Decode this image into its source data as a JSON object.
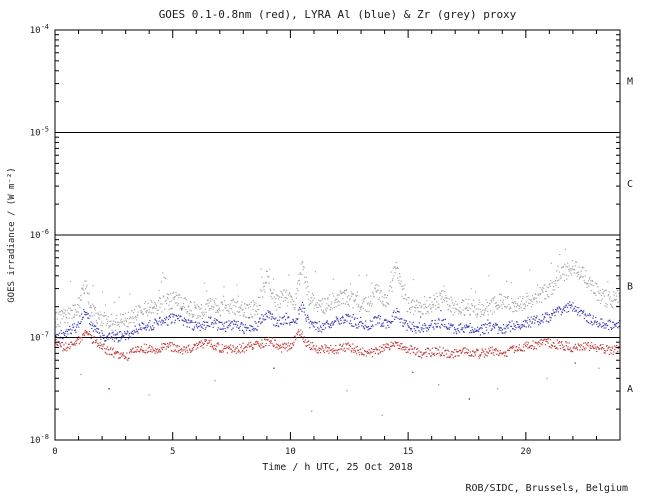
{
  "header": {
    "title": "GOES 0.1-0.8nm (red), LYRA Al (blue) & Zr (grey) proxy"
  },
  "footer": {
    "credit": "ROB/SIDC, Brussels, Belgium"
  },
  "chart_data": {
    "type": "scatter",
    "title": "GOES 0.1-0.8nm (red), LYRA Al (blue) & Zr (grey) proxy",
    "xlabel": "Time / h UTC, 25 Oct 2018",
    "ylabel": "GOES irradiance / (W m⁻²)",
    "footer": "ROB/SIDC, Brussels, Belgium",
    "xlim": [
      0,
      24
    ],
    "ylog_range": [
      -8,
      -4
    ],
    "x_major_ticks": [
      0,
      5,
      10,
      15,
      20
    ],
    "x_minor_step": 1,
    "y_decades": [
      -8,
      -7,
      -6,
      -5,
      -4
    ],
    "hlines_log": [
      -7,
      -6,
      -5
    ],
    "flare_classes": [
      {
        "label": "M",
        "log_mid": -4.5
      },
      {
        "label": "C",
        "log_mid": -5.5
      },
      {
        "label": "B",
        "log_mid": -6.5
      },
      {
        "label": "A",
        "log_mid": -7.5
      }
    ],
    "axis_color": "#000000",
    "text_color": "#1c1c1c",
    "grid": false,
    "legend": "colors named in title",
    "noise_seed": 20181025,
    "series": [
      {
        "name": "LYRA Zr proxy",
        "color": "#a8a8a8",
        "jitter_log": 0.04,
        "streak_prob": 0.05,
        "streak_mag": 0.28,
        "dot_step_h": 0.02,
        "anchors_log": [
          [
            0,
            -6.84
          ],
          [
            0.4,
            -6.8
          ],
          [
            0.9,
            -6.74
          ],
          [
            1.3,
            -6.5
          ],
          [
            1.6,
            -6.74
          ],
          [
            2,
            -6.83
          ],
          [
            2.6,
            -6.86
          ],
          [
            3.1,
            -6.82
          ],
          [
            3.6,
            -6.74
          ],
          [
            4.2,
            -6.7
          ],
          [
            4.8,
            -6.66
          ],
          [
            5.2,
            -6.62
          ],
          [
            5.7,
            -6.72
          ],
          [
            6.2,
            -6.75
          ],
          [
            6.6,
            -6.65
          ],
          [
            7.1,
            -6.72
          ],
          [
            7.6,
            -6.69
          ],
          [
            8.1,
            -6.75
          ],
          [
            8.6,
            -6.7
          ],
          [
            9,
            -6.42
          ],
          [
            9.4,
            -6.66
          ],
          [
            9.8,
            -6.6
          ],
          [
            10.2,
            -6.66
          ],
          [
            10.5,
            -6.28
          ],
          [
            10.8,
            -6.62
          ],
          [
            11.3,
            -6.7
          ],
          [
            11.8,
            -6.65
          ],
          [
            12.3,
            -6.6
          ],
          [
            12.8,
            -6.66
          ],
          [
            13.3,
            -6.68
          ],
          [
            13.7,
            -6.54
          ],
          [
            14.1,
            -6.68
          ],
          [
            14.5,
            -6.31
          ],
          [
            14.9,
            -6.66
          ],
          [
            15.4,
            -6.71
          ],
          [
            16,
            -6.68
          ],
          [
            16.5,
            -6.6
          ],
          [
            17,
            -6.73
          ],
          [
            17.5,
            -6.7
          ],
          [
            18,
            -6.73
          ],
          [
            18.5,
            -6.7
          ],
          [
            19,
            -6.64
          ],
          [
            19.5,
            -6.68
          ],
          [
            20,
            -6.65
          ],
          [
            20.5,
            -6.6
          ],
          [
            21,
            -6.54
          ],
          [
            21.5,
            -6.4
          ],
          [
            22,
            -6.3
          ],
          [
            22.4,
            -6.37
          ],
          [
            22.8,
            -6.5
          ],
          [
            23.2,
            -6.6
          ],
          [
            23.6,
            -6.64
          ],
          [
            24,
            -6.6
          ]
        ]
      },
      {
        "name": "LYRA Al proxy",
        "color": "#3c3cb4",
        "jitter_log": 0.025,
        "streak_prob": 0.015,
        "streak_mag": 0.12,
        "dot_step_h": 0.024,
        "anchors_log": [
          [
            0,
            -7.0
          ],
          [
            0.4,
            -6.96
          ],
          [
            0.9,
            -6.9
          ],
          [
            1.3,
            -6.73
          ],
          [
            1.6,
            -6.9
          ],
          [
            2,
            -6.98
          ],
          [
            2.6,
            -7.0
          ],
          [
            3.1,
            -6.97
          ],
          [
            3.6,
            -6.91
          ],
          [
            4.2,
            -6.87
          ],
          [
            4.8,
            -6.83
          ],
          [
            5.2,
            -6.8
          ],
          [
            5.7,
            -6.88
          ],
          [
            6.2,
            -6.9
          ],
          [
            6.6,
            -6.84
          ],
          [
            7.1,
            -6.9
          ],
          [
            7.6,
            -6.87
          ],
          [
            8.1,
            -6.92
          ],
          [
            8.6,
            -6.88
          ],
          [
            9,
            -6.76
          ],
          [
            9.4,
            -6.86
          ],
          [
            9.8,
            -6.81
          ],
          [
            10.2,
            -6.86
          ],
          [
            10.5,
            -6.69
          ],
          [
            10.8,
            -6.86
          ],
          [
            11.3,
            -6.9
          ],
          [
            11.8,
            -6.86
          ],
          [
            12.3,
            -6.81
          ],
          [
            12.8,
            -6.86
          ],
          [
            13.3,
            -6.88
          ],
          [
            13.7,
            -6.82
          ],
          [
            14.1,
            -6.88
          ],
          [
            14.5,
            -6.76
          ],
          [
            14.9,
            -6.88
          ],
          [
            15.4,
            -6.91
          ],
          [
            16,
            -6.88
          ],
          [
            16.5,
            -6.85
          ],
          [
            17,
            -6.92
          ],
          [
            17.5,
            -6.9
          ],
          [
            18,
            -6.93
          ],
          [
            18.5,
            -6.9
          ],
          [
            19,
            -6.92
          ],
          [
            19.5,
            -6.88
          ],
          [
            20,
            -6.86
          ],
          [
            20.5,
            -6.83
          ],
          [
            21,
            -6.8
          ],
          [
            21.5,
            -6.73
          ],
          [
            22,
            -6.69
          ],
          [
            22.4,
            -6.78
          ],
          [
            22.9,
            -6.84
          ],
          [
            23.4,
            -6.88
          ],
          [
            24,
            -6.86
          ]
        ]
      },
      {
        "name": "GOES 0.1-0.8nm",
        "color": "#c03a3a",
        "jitter_log": 0.022,
        "streak_prob": 0.0,
        "streak_mag": 0.0,
        "dot_step_h": 0.024,
        "anchors_log": [
          [
            0,
            -7.02
          ],
          [
            0.4,
            -7.1
          ],
          [
            0.9,
            -7.06
          ],
          [
            1.3,
            -6.94
          ],
          [
            1.6,
            -7.02
          ],
          [
            2,
            -7.1
          ],
          [
            2.6,
            -7.16
          ],
          [
            3.1,
            -7.18
          ],
          [
            3.6,
            -7.1
          ],
          [
            4.2,
            -7.12
          ],
          [
            4.8,
            -7.08
          ],
          [
            5.3,
            -7.12
          ],
          [
            5.9,
            -7.1
          ],
          [
            6.5,
            -7.05
          ],
          [
            7,
            -7.1
          ],
          [
            7.6,
            -7.12
          ],
          [
            8.2,
            -7.09
          ],
          [
            8.8,
            -7.06
          ],
          [
            9.2,
            -7.03
          ],
          [
            9.6,
            -7.1
          ],
          [
            10,
            -7.08
          ],
          [
            10.4,
            -6.93
          ],
          [
            10.7,
            -7.06
          ],
          [
            11.2,
            -7.11
          ],
          [
            11.8,
            -7.12
          ],
          [
            12.4,
            -7.09
          ],
          [
            13,
            -7.13
          ],
          [
            13.5,
            -7.15
          ],
          [
            14,
            -7.1
          ],
          [
            14.5,
            -7.06
          ],
          [
            15,
            -7.11
          ],
          [
            15.5,
            -7.16
          ],
          [
            16.2,
            -7.13
          ],
          [
            16.8,
            -7.16
          ],
          [
            17.4,
            -7.14
          ],
          [
            18,
            -7.16
          ],
          [
            18.6,
            -7.13
          ],
          [
            19.2,
            -7.15
          ],
          [
            19.7,
            -7.1
          ],
          [
            20.2,
            -7.08
          ],
          [
            20.8,
            -7.05
          ],
          [
            21.4,
            -7.07
          ],
          [
            22,
            -7.1
          ],
          [
            22.6,
            -7.08
          ],
          [
            23.2,
            -7.11
          ],
          [
            23.7,
            -7.13
          ],
          [
            24,
            -7.1
          ]
        ]
      }
    ],
    "outliers": [
      {
        "x": 1.1,
        "log": -7.36,
        "color": "#a8a8a8"
      },
      {
        "x": 2.3,
        "log": -7.5,
        "color": "#3c3cb4"
      },
      {
        "x": 4.0,
        "log": -7.56,
        "color": "#a8a8a8"
      },
      {
        "x": 6.8,
        "log": -7.42,
        "color": "#a8a8a8"
      },
      {
        "x": 9.3,
        "log": -7.3,
        "color": "#3c3cb4"
      },
      {
        "x": 10.9,
        "log": -7.72,
        "color": "#a8a8a8"
      },
      {
        "x": 12.4,
        "log": -7.52,
        "color": "#a8a8a8"
      },
      {
        "x": 13.9,
        "log": -7.76,
        "color": "#a8a8a8"
      },
      {
        "x": 15.2,
        "log": -7.34,
        "color": "#c03a3a"
      },
      {
        "x": 16.3,
        "log": -7.46,
        "color": "#a8a8a8"
      },
      {
        "x": 17.6,
        "log": -7.6,
        "color": "#3c3cb4"
      },
      {
        "x": 18.8,
        "log": -7.5,
        "color": "#a8a8a8"
      },
      {
        "x": 20.9,
        "log": -7.4,
        "color": "#a8a8a8"
      },
      {
        "x": 22.1,
        "log": -7.25,
        "color": "#c03a3a"
      },
      {
        "x": 23.1,
        "log": -7.3,
        "color": "#a8a8a8"
      }
    ]
  }
}
